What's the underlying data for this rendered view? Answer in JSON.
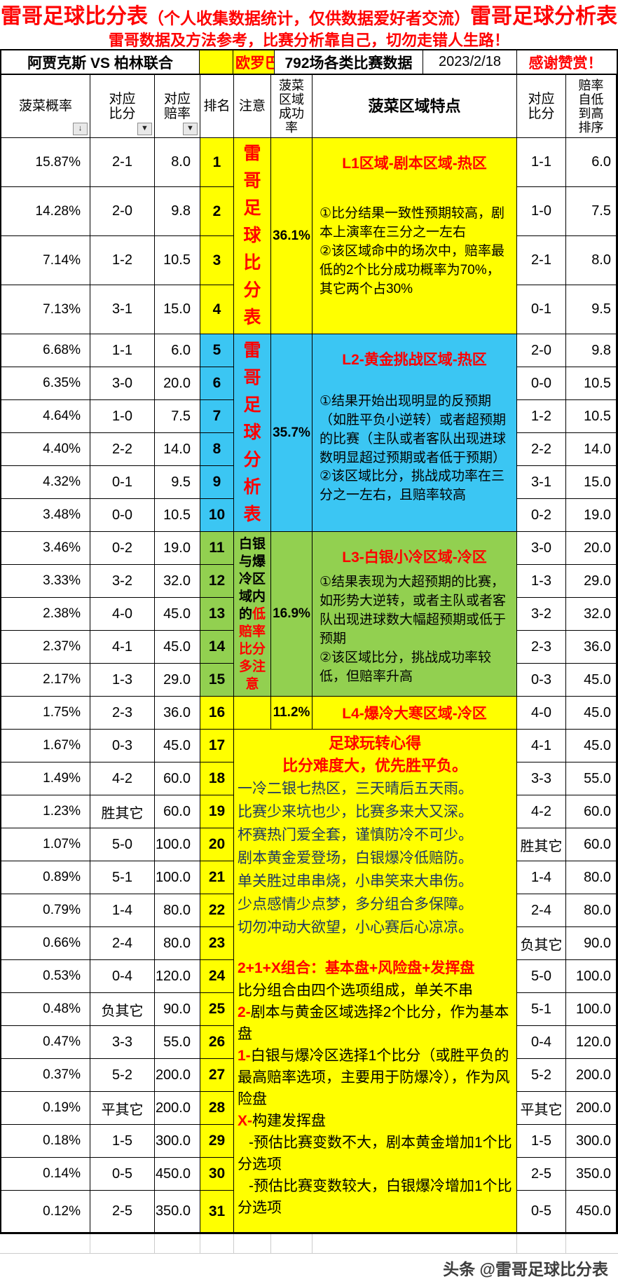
{
  "title": {
    "main_left": "雷哥足球比分表",
    "paren": "（个人收集数据统计，仅供数据爱好者交流）",
    "main_right": "雷哥足球分析表",
    "subtitle": "雷哥数据及方法参考，比赛分析靠自己，切勿走错人生路！"
  },
  "match_row": {
    "match": "阿贾克斯 VS 柏林联合",
    "competition": "欧罗巴",
    "sample": "792场各类比赛数据",
    "date": "2023/2/18",
    "thanks": "感谢赞赏！"
  },
  "headers": {
    "prob": "菠菜概率",
    "score": "对应比分",
    "odds": "对应赔率",
    "rank": "排名",
    "note": "注意",
    "rate": "菠菜区域成功率",
    "feature": "菠菜区域特点",
    "score2": "对应比分",
    "odds_sorted": "赔率自低到高排序",
    "sort_icon": "↓",
    "filter_icon": "▼"
  },
  "rows": [
    {
      "prob": "15.87%",
      "score": "2-1",
      "odds": "8.0",
      "score2": "1-1",
      "odds2": "6.0"
    },
    {
      "prob": "14.28%",
      "score": "2-0",
      "odds": "9.8",
      "score2": "1-0",
      "odds2": "7.5"
    },
    {
      "prob": "7.14%",
      "score": "1-2",
      "odds": "10.5",
      "score2": "2-1",
      "odds2": "8.0"
    },
    {
      "prob": "7.13%",
      "score": "3-1",
      "odds": "15.0",
      "score2": "0-1",
      "odds2": "9.5"
    },
    {
      "prob": "6.68%",
      "score": "1-1",
      "odds": "6.0",
      "score2": "2-0",
      "odds2": "9.8"
    },
    {
      "prob": "6.35%",
      "score": "3-0",
      "odds": "20.0",
      "score2": "0-0",
      "odds2": "10.5"
    },
    {
      "prob": "4.64%",
      "score": "1-0",
      "odds": "7.5",
      "score2": "1-2",
      "odds2": "10.5"
    },
    {
      "prob": "4.40%",
      "score": "2-2",
      "odds": "14.0",
      "score2": "2-2",
      "odds2": "14.0"
    },
    {
      "prob": "4.32%",
      "score": "0-1",
      "odds": "9.5",
      "score2": "3-1",
      "odds2": "15.0"
    },
    {
      "prob": "3.48%",
      "score": "0-0",
      "odds": "10.5",
      "score2": "0-2",
      "odds2": "19.0"
    },
    {
      "prob": "3.46%",
      "score": "0-2",
      "odds": "19.0",
      "score2": "3-0",
      "odds2": "20.0"
    },
    {
      "prob": "3.33%",
      "score": "3-2",
      "odds": "32.0",
      "score2": "1-3",
      "odds2": "29.0"
    },
    {
      "prob": "2.38%",
      "score": "4-0",
      "odds": "45.0",
      "score2": "3-2",
      "odds2": "32.0"
    },
    {
      "prob": "2.37%",
      "score": "4-1",
      "odds": "45.0",
      "score2": "2-3",
      "odds2": "36.0"
    },
    {
      "prob": "2.17%",
      "score": "1-3",
      "odds": "29.0",
      "score2": "0-3",
      "odds2": "45.0"
    },
    {
      "prob": "1.75%",
      "score": "2-3",
      "odds": "36.0",
      "score2": "4-0",
      "odds2": "45.0"
    },
    {
      "prob": "1.67%",
      "score": "0-3",
      "odds": "45.0",
      "score2": "4-1",
      "odds2": "45.0"
    },
    {
      "prob": "1.49%",
      "score": "4-2",
      "odds": "60.0",
      "score2": "3-3",
      "odds2": "55.0"
    },
    {
      "prob": "1.23%",
      "score": "胜其它",
      "odds": "60.0",
      "score2": "4-2",
      "odds2": "60.0"
    },
    {
      "prob": "1.07%",
      "score": "5-0",
      "odds": "100.0",
      "score2": "胜其它",
      "odds2": "60.0"
    },
    {
      "prob": "0.89%",
      "score": "5-1",
      "odds": "100.0",
      "score2": "1-4",
      "odds2": "80.0"
    },
    {
      "prob": "0.79%",
      "score": "1-4",
      "odds": "80.0",
      "score2": "2-4",
      "odds2": "80.0"
    },
    {
      "prob": "0.66%",
      "score": "2-4",
      "odds": "80.0",
      "score2": "负其它",
      "odds2": "90.0"
    },
    {
      "prob": "0.53%",
      "score": "0-4",
      "odds": "120.0",
      "score2": "5-0",
      "odds2": "100.0"
    },
    {
      "prob": "0.48%",
      "score": "负其它",
      "odds": "90.0",
      "score2": "5-1",
      "odds2": "100.0"
    },
    {
      "prob": "0.47%",
      "score": "3-3",
      "odds": "55.0",
      "score2": "0-4",
      "odds2": "120.0"
    },
    {
      "prob": "0.37%",
      "score": "5-2",
      "odds": "200.0",
      "score2": "5-2",
      "odds2": "200.0"
    },
    {
      "prob": "0.19%",
      "score": "平其它",
      "odds": "200.0",
      "score2": "平其它",
      "odds2": "200.0"
    },
    {
      "prob": "0.18%",
      "score": "1-5",
      "odds": "300.0",
      "score2": "1-5",
      "odds2": "300.0"
    },
    {
      "prob": "0.14%",
      "score": "0-5",
      "odds": "450.0",
      "score2": "2-5",
      "odds2": "350.0"
    },
    {
      "prob": "0.12%",
      "score": "2-5",
      "odds": "350.0",
      "score2": "0-5",
      "odds2": "450.0"
    }
  ],
  "regions": [
    {
      "rows": "1-4",
      "bg": "#FFFF00",
      "rate": "36.1%",
      "note": "雷哥足球比分表",
      "title": "L1区域-剧本区域-热区",
      "desc": [
        "①比分结果一致性预期较高，剧本上演率在三分之一左右",
        "②该区域命中的场次中，赔率最低的2个比分成功概率为70%，其它两个占30%"
      ]
    },
    {
      "rows": "5-10",
      "bg": "#3BC6F3",
      "rate": "35.7%",
      "note": "雷哥足球分析表",
      "title": "L2-黄金挑战区域-热区",
      "desc": [
        "①结果开始出现明显的反预期（如胜平负小逆转）或者超预期的比赛（主队或者客队出现进球数明显超过预期或者低于预期）",
        "②该区域比分，挑战成功率在三分之一左右，且赔率较高"
      ]
    },
    {
      "rows": "11-15",
      "bg": "#92D050",
      "rate": "16.9%",
      "note_black": "白银与爆冷区域内的",
      "note_red": "低赔率比分多注意",
      "title": "L3-白银小冷区域-冷区",
      "desc": [
        "①结果表现为大超预期的比赛，如形势大逆转，或者主队或者客队出现进球数大幅超预期或低于预期",
        "②该区域比分，挑战成功率较低，但赔率升高"
      ]
    },
    {
      "rows": "16",
      "bg": "#FFFF00",
      "rate": "11.2%",
      "title": "L4-爆冷大寒区域-冷区"
    }
  ],
  "notes_panel": {
    "poem_title": "足球玩转心得",
    "poem_subtitle": "比分难度大，优先胜平负。",
    "poem_lines": [
      "一冷二银七热区，三天晴后五天雨。",
      "比赛少来坑也少，比赛多来大又深。",
      "杯赛热门爱全套，谨慎防冷不可少。",
      "剧本黄金爱登场，白银爆冷低赔防。",
      "单关胜过串串烧，小串笑来大串伤。",
      "少点感情少点梦，多分组合多保障。",
      "切勿冲动大欲望，小心赛后心凉凉。"
    ],
    "combo_title": "2+1+X组合：基本盘+风险盘+发挥盘",
    "combo_lines": [
      {
        "prefix": "",
        "text": "比分组合由四个选项组成，单关不串"
      },
      {
        "prefix": "2-",
        "text": "剧本与黄金区域选择2个比分，作为基本盘"
      },
      {
        "prefix": "1-",
        "text": "白银与爆冷区选择1个比分（或胜平负的最高赔率选项，主要用于防爆冷），作为风险盘"
      },
      {
        "prefix": "X-",
        "text": "构建发挥盘"
      },
      {
        "prefix": "",
        "text": "-预估比赛变数不大，剧本黄金增加1个比分选项"
      },
      {
        "prefix": "",
        "text": "-预估比赛变数较大，白银爆冷增加1个比分选项"
      }
    ]
  },
  "footer": {
    "watermark": "头条 @雷哥足球比分表"
  },
  "colors": {
    "yellow": "#FFFF00",
    "cyan": "#3BC6F3",
    "green": "#92D050",
    "red": "#FF0000",
    "poem_text": "#1F3864"
  }
}
